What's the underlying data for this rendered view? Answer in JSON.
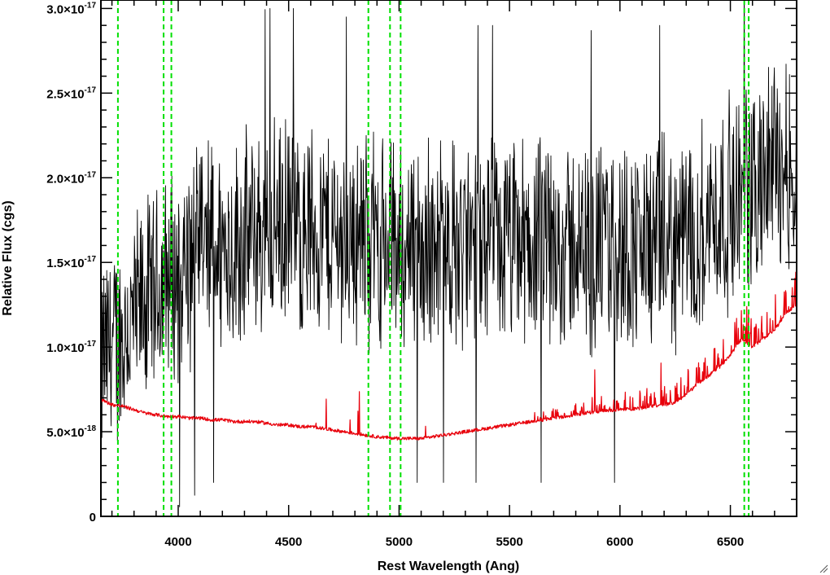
{
  "chart_data": {
    "type": "line",
    "title": "",
    "xlabel": "Rest Wavelength (Ang)",
    "ylabel": "Relative Flux (cgs)",
    "xlim": [
      3650,
      6800
    ],
    "ylim": [
      0,
      3.05e-17
    ],
    "x_ticks": [
      {
        "value": 4000,
        "label": "4000"
      },
      {
        "value": 4500,
        "label": "4500"
      },
      {
        "value": 5000,
        "label": "5000"
      },
      {
        "value": 5500,
        "label": "5500"
      },
      {
        "value": 6000,
        "label": "6000"
      },
      {
        "value": 6500,
        "label": "6500"
      }
    ],
    "y_ticks": [
      {
        "value": 0,
        "mantissa": "0",
        "exponent": ""
      },
      {
        "value": 5e-18,
        "mantissa": "5.0×10",
        "exponent": "-18"
      },
      {
        "value": 1e-17,
        "mantissa": "1.0×10",
        "exponent": "-17"
      },
      {
        "value": 1.5e-17,
        "mantissa": "1.5×10",
        "exponent": "-17"
      },
      {
        "value": 2e-17,
        "mantissa": "2.0×10",
        "exponent": "-17"
      },
      {
        "value": 2.5e-17,
        "mantissa": "2.5×10",
        "exponent": "-17"
      },
      {
        "value": 3e-17,
        "mantissa": "3.0×10",
        "exponent": "-17"
      }
    ],
    "x_minor_step": 100,
    "y_minor_step": 1e-18,
    "series": [
      {
        "color": "#000000",
        "x": [
          3650,
          3700,
          3750,
          3800,
          3850,
          3900,
          3950,
          4000,
          4050,
          4100,
          4150,
          4200,
          4250,
          4300,
          4350,
          4400,
          4450,
          4500,
          4550,
          4600,
          4650,
          4700,
          4750,
          4800,
          4850,
          4900,
          4950,
          5000,
          5050,
          5100,
          5150,
          5200,
          5250,
          5300,
          5350,
          5400,
          5450,
          5500,
          5550,
          5600,
          5650,
          5700,
          5750,
          5800,
          5850,
          5900,
          5950,
          6000,
          6050,
          6100,
          6150,
          6200,
          6250,
          6300,
          6350,
          6400,
          6450,
          6500,
          6550,
          6600,
          6650,
          6700,
          6750,
          6800
        ],
        "y": [
          9e-18,
          1e-17,
          1.05e-17,
          1.15e-17,
          1.25e-17,
          1.3e-17,
          1.4e-17,
          1.45e-17,
          1.5e-17,
          1.55e-17,
          1.6e-17,
          1.6e-17,
          1.6e-17,
          1.65e-17,
          1.65e-17,
          1.7e-17,
          1.7e-17,
          1.7e-17,
          1.7e-17,
          1.7e-17,
          1.7e-17,
          1.65e-17,
          1.65e-17,
          1.65e-17,
          1.65e-17,
          1.65e-17,
          1.6e-17,
          1.6e-17,
          1.6e-17,
          1.6e-17,
          1.6e-17,
          1.6e-17,
          1.6e-17,
          1.6e-17,
          1.6e-17,
          1.6e-17,
          1.6e-17,
          1.6e-17,
          1.6e-17,
          1.6e-17,
          1.6e-17,
          1.6e-17,
          1.6e-17,
          1.6e-17,
          1.55e-17,
          1.6e-17,
          1.6e-17,
          1.6e-17,
          1.6e-17,
          1.6e-17,
          1.6e-17,
          1.6e-17,
          1.6e-17,
          1.65e-17,
          1.7e-17,
          1.75e-17,
          1.8e-17,
          1.85e-17,
          1.9e-17,
          1.95e-17,
          2e-17,
          2.1e-17,
          2.1e-17,
          2e-17
        ]
      },
      {
        "color": "#e8000b",
        "x": [
          3650,
          3700,
          3750,
          3800,
          3850,
          3900,
          3950,
          4000,
          4050,
          4100,
          4150,
          4200,
          4250,
          4300,
          4350,
          4400,
          4450,
          4500,
          4550,
          4600,
          4650,
          4700,
          4750,
          4800,
          4850,
          4900,
          4950,
          5000,
          5050,
          5100,
          5150,
          5200,
          5250,
          5300,
          5350,
          5400,
          5450,
          5500,
          5550,
          5600,
          5650,
          5700,
          5750,
          5800,
          5850,
          5900,
          5950,
          6000,
          6050,
          6100,
          6150,
          6200,
          6250,
          6300,
          6350,
          6400,
          6450,
          6500,
          6550,
          6600,
          6650,
          6700,
          6750,
          6800
        ],
        "y": [
          6.9e-18,
          6.6e-18,
          6.5e-18,
          6.3e-18,
          6.1e-18,
          6e-18,
          5.9e-18,
          5.9e-18,
          5.8e-18,
          5.8e-18,
          5.7e-18,
          5.7e-18,
          5.6e-18,
          5.6e-18,
          5.6e-18,
          5.5e-18,
          5.4e-18,
          5.4e-18,
          5.3e-18,
          5.3e-18,
          5.2e-18,
          5.1e-18,
          5e-18,
          4.9e-18,
          4.8e-18,
          4.7e-18,
          4.65e-18,
          4.6e-18,
          4.6e-18,
          4.6e-18,
          4.7e-18,
          4.8e-18,
          4.9e-18,
          5e-18,
          5.1e-18,
          5.2e-18,
          5.3e-18,
          5.4e-18,
          5.5e-18,
          5.6e-18,
          5.7e-18,
          5.8e-18,
          5.9e-18,
          6e-18,
          6.1e-18,
          6.2e-18,
          6.25e-18,
          6.3e-18,
          6.35e-18,
          6.4e-18,
          6.5e-18,
          6.6e-18,
          6.7e-18,
          7.2e-18,
          7.8e-18,
          8.3e-18,
          8.8e-18,
          9.5e-18,
          1.05e-17,
          1e-17,
          1.05e-17,
          1.1e-17,
          1.2e-17,
          1.25e-17
        ]
      }
    ],
    "reference_lines_x": [
      3727,
      3934,
      3969,
      4861,
      4959,
      5007,
      6563,
      6583
    ],
    "reference_line_color": "#00e000",
    "reference_line_style": "dashed",
    "grid": false,
    "legend": "none"
  }
}
